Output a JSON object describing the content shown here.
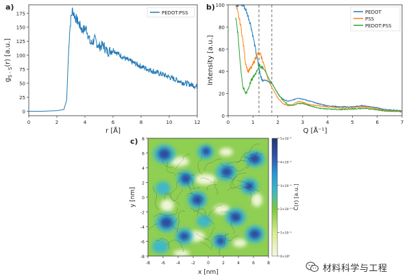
{
  "panels": {
    "a": {
      "label": "a)",
      "xlabel": "r [Å]",
      "ylabel_main": "g",
      "ylabel_sub": "S - S",
      "ylabel_rest": "(r) [a.u.]",
      "xlim": [
        0,
        12
      ],
      "ylim": [
        -8,
        190
      ],
      "xticks": [
        "0",
        "2",
        "4",
        "6",
        "8",
        "10",
        "12"
      ],
      "yticks": [
        "0",
        "25",
        "50",
        "75",
        "100",
        "125",
        "150",
        "175"
      ],
      "legend": [
        "PEDOT:PSS"
      ],
      "color": "#1f77b4"
    },
    "b": {
      "label": "b)",
      "xlabel": "Q [Å⁻¹]",
      "ylabel": "Intensity [a.u.]",
      "xlim": [
        0,
        7
      ],
      "ylim": [
        0,
        100
      ],
      "xticks": [
        "0",
        "1",
        "2",
        "3",
        "4",
        "5",
        "6",
        "7"
      ],
      "yticks": [
        "0",
        "20",
        "40",
        "60",
        "80",
        "100"
      ],
      "legend": [
        "PEDOT",
        "PSS",
        "PEDOT:PSS"
      ],
      "colors": [
        "#1f77b4",
        "#ff7f0e",
        "#2ca02c"
      ],
      "vlines_q": [
        1.24,
        1.76
      ]
    },
    "c": {
      "label": "c)",
      "xlabel": "x [nm]",
      "ylabel": "y [nm]",
      "xlim": [
        -8,
        8
      ],
      "ylim": [
        -8,
        8
      ],
      "xticks": [
        "-8",
        "-6",
        "-4",
        "-2",
        "0",
        "2",
        "4",
        "6",
        "8"
      ],
      "yticks": [
        "-8",
        "-6",
        "-4",
        "-2",
        "0",
        "2",
        "4",
        "6",
        "8"
      ],
      "colorbar_label": "C̃(r) [a.u.]",
      "colorbar_ticks": [
        "0×10⁰",
        "1×10⁻⁴",
        "2×10⁻⁴",
        "3×10⁻⁴",
        "4×10⁻⁴",
        "5×10⁻⁴"
      ]
    }
  },
  "chart_data": [
    {
      "type": "line",
      "title": "a)",
      "xlabel": "r [Å]",
      "ylabel": "g_S-S(r) [a.u.]",
      "xlim": [
        0,
        12
      ],
      "ylim": [
        -8,
        190
      ],
      "series": [
        {
          "name": "PEDOT:PSS",
          "x": [
            0,
            1,
            2,
            2.5,
            2.7,
            2.8,
            2.9,
            3.0,
            3.1,
            3.2,
            3.3,
            3.5,
            3.8,
            4.1,
            4.4,
            4.7,
            5.0,
            5.3,
            5.6,
            6.0,
            6.5,
            7.0,
            7.5,
            8.0,
            8.5,
            9.0,
            9.5,
            10.0,
            10.5,
            11.0,
            11.5,
            12.0
          ],
          "values": [
            0,
            0,
            1,
            3,
            20,
            85,
            140,
            165,
            180,
            175,
            168,
            160,
            145,
            148,
            120,
            128,
            115,
            118,
            106,
            110,
            100,
            92,
            86,
            80,
            75,
            70,
            66,
            61,
            56,
            51,
            48,
            44
          ]
        }
      ]
    },
    {
      "type": "line",
      "title": "b)",
      "xlabel": "Q [Å⁻¹]",
      "ylabel": "Intensity [a.u.]",
      "xlim": [
        0,
        7
      ],
      "ylim": [
        0,
        100
      ],
      "series": [
        {
          "name": "PEDOT",
          "x": [
            0.3,
            0.35,
            0.4,
            0.5,
            0.6,
            0.7,
            0.8,
            0.9,
            1.0,
            1.1,
            1.2,
            1.3,
            1.4,
            1.5,
            1.6,
            1.7,
            1.8,
            1.9,
            2.0,
            2.1,
            2.2,
            2.4,
            2.6,
            2.8,
            3.0,
            3.3,
            3.6,
            4.0,
            4.5,
            5.0,
            5.4,
            5.8,
            6.2,
            6.6,
            7.0
          ],
          "values": [
            100,
            100,
            100,
            100,
            100,
            96,
            90,
            83,
            72,
            60,
            48,
            36,
            32,
            32,
            31,
            30,
            28,
            24,
            20,
            17,
            15,
            13,
            14,
            16,
            15,
            13,
            11,
            9,
            8,
            8,
            9,
            8,
            6,
            5,
            4.5
          ]
        },
        {
          "name": "PSS",
          "x": [
            0.3,
            0.4,
            0.5,
            0.6,
            0.7,
            0.8,
            0.9,
            1.0,
            1.1,
            1.2,
            1.3,
            1.4,
            1.5,
            1.6,
            1.7,
            1.8,
            1.9,
            2.0,
            2.2,
            2.4,
            2.6,
            2.8,
            3.0,
            3.3,
            3.6,
            4.0,
            4.5,
            5.0,
            5.4,
            5.8,
            6.2,
            6.6,
            7.0
          ],
          "values": [
            100,
            92,
            82,
            67,
            48,
            40,
            42,
            46,
            52,
            56,
            55,
            49,
            42,
            33,
            28,
            24,
            20,
            16,
            11,
            9,
            10,
            13,
            12,
            10,
            9,
            8,
            7,
            7,
            8,
            7,
            5,
            4.5,
            4
          ]
        },
        {
          "name": "PEDOT:PSS",
          "x": [
            0.3,
            0.4,
            0.5,
            0.6,
            0.7,
            0.8,
            0.9,
            1.0,
            1.1,
            1.2,
            1.3,
            1.4,
            1.5,
            1.6,
            1.7,
            1.8,
            1.9,
            2.0,
            2.2,
            2.4,
            2.6,
            2.8,
            3.0,
            3.3,
            3.6,
            4.0,
            4.5,
            5.0,
            5.4,
            5.8,
            6.2,
            6.6,
            7.0
          ],
          "values": [
            90,
            72,
            45,
            25,
            20,
            24,
            30,
            34,
            38,
            43,
            45,
            43,
            40,
            35,
            31,
            28,
            24,
            20,
            14,
            10,
            9,
            11,
            11,
            9,
            7,
            6,
            5.5,
            6,
            6.5,
            6,
            4.5,
            4,
            3.5
          ]
        }
      ]
    }
  ],
  "watermark": {
    "text": "材料科学与工程"
  }
}
